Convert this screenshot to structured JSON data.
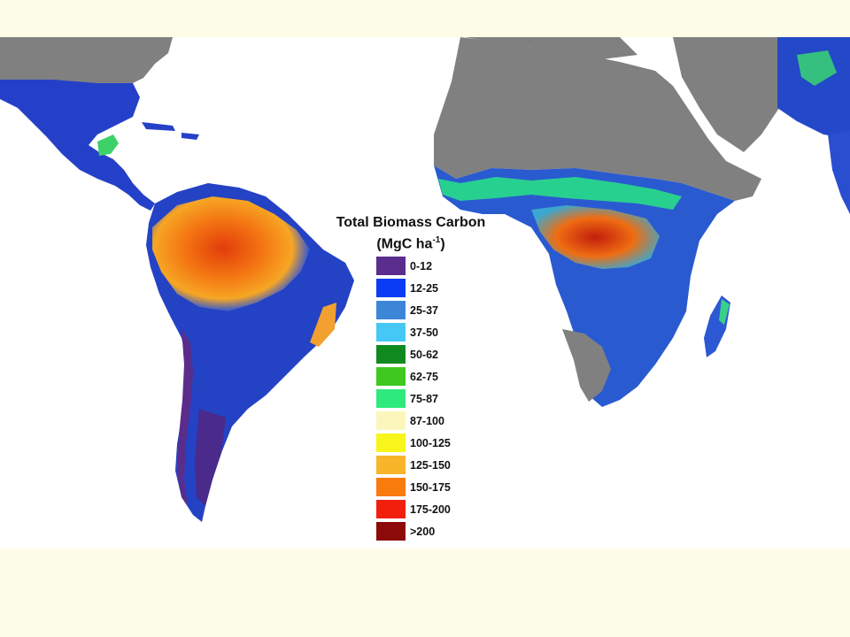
{
  "legend": {
    "title_line1": "Total Biomass Carbon",
    "unit_prefix": "(MgC ha",
    "unit_sup": "-1",
    "unit_suffix": ")",
    "items": [
      {
        "label": "0-12",
        "color": "#5b2d8c"
      },
      {
        "label": "12-25",
        "color": "#0b3cf5"
      },
      {
        "label": "25-37",
        "color": "#3c86d8"
      },
      {
        "label": "37-50",
        "color": "#45c8f5"
      },
      {
        "label": "50-62",
        "color": "#0f8a1f"
      },
      {
        "label": "62-75",
        "color": "#3fc81f"
      },
      {
        "label": "75-87",
        "color": "#2eea7d"
      },
      {
        "label": "87-100",
        "color": "#fbf7bc"
      },
      {
        "label": "100-125",
        "color": "#f7f51a"
      },
      {
        "label": "125-150",
        "color": "#f8b52a"
      },
      {
        "label": "150-175",
        "color": "#f97a0d"
      },
      {
        "label": "175-200",
        "color": "#f21f0d"
      },
      {
        "label": ">200",
        "color": "#8c0a0a"
      }
    ]
  },
  "map": {
    "nonforest_land_color": "#808080",
    "ocean_color": "#ffffff"
  }
}
